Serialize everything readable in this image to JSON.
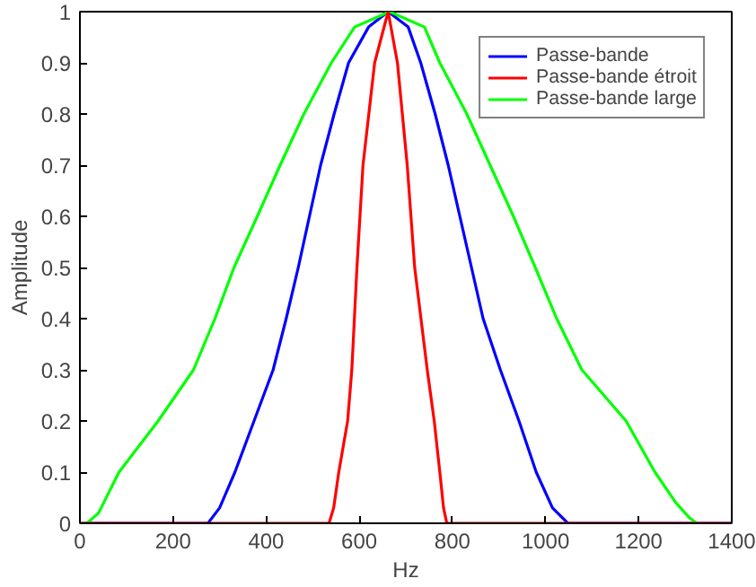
{
  "chart_data": {
    "type": "line",
    "xlabel": "Hz",
    "ylabel": "Amplitude",
    "xlim": [
      0,
      1400
    ],
    "xticks": [
      0,
      200,
      400,
      600,
      800,
      1000,
      1200,
      1400
    ],
    "ylim": [
      0,
      1
    ],
    "yticks": [
      0,
      0.1,
      0.2,
      0.3,
      0.4,
      0.5,
      0.6,
      0.7,
      0.8,
      0.9,
      1
    ],
    "grid": false,
    "legend": "top right",
    "line_style": "solid",
    "marker": "none",
    "series": [
      {
        "name": "Passe-bande",
        "color": "#0000ff",
        "x": [
          0,
          275,
          300,
          333,
          374,
          415,
          443,
          469,
          493,
          517,
          546,
          577,
          620,
          662,
          705,
          732,
          763,
          791,
          816,
          841,
          866,
          903,
          943,
          980,
          1015,
          1048,
          1400
        ],
        "values": [
          0,
          0,
          0.03,
          0.1,
          0.2,
          0.3,
          0.4,
          0.5,
          0.6,
          0.7,
          0.8,
          0.9,
          0.97,
          1,
          0.97,
          0.9,
          0.8,
          0.7,
          0.6,
          0.5,
          0.4,
          0.3,
          0.2,
          0.1,
          0.03,
          0,
          0
        ]
      },
      {
        "name": "Passe-bande étroit",
        "color": "#ff0000",
        "x": [
          0,
          535,
          545,
          556,
          575,
          584,
          595,
          608,
          633,
          662,
          682,
          703,
          719,
          746,
          761,
          773,
          781,
          788,
          1400
        ],
        "values": [
          0,
          0,
          0.03,
          0.1,
          0.2,
          0.3,
          0.5,
          0.7,
          0.9,
          1,
          0.9,
          0.7,
          0.5,
          0.3,
          0.2,
          0.1,
          0.03,
          0,
          0
        ]
      },
      {
        "name": "Passe-bande large",
        "color": "#00ff00",
        "x": [
          0,
          15,
          40,
          84,
          168,
          244,
          290,
          331,
          381,
          430,
          481,
          540,
          590,
          665,
          740,
          773,
          831,
          881,
          931,
          978,
          1024,
          1078,
          1173,
          1235,
          1280,
          1310,
          1325
        ],
        "values": [
          0,
          0,
          0.02,
          0.1,
          0.2,
          0.3,
          0.4,
          0.5,
          0.6,
          0.7,
          0.8,
          0.9,
          0.97,
          1,
          0.97,
          0.9,
          0.8,
          0.7,
          0.6,
          0.5,
          0.4,
          0.3,
          0.2,
          0.1,
          0.04,
          0.01,
          0
        ]
      }
    ]
  }
}
